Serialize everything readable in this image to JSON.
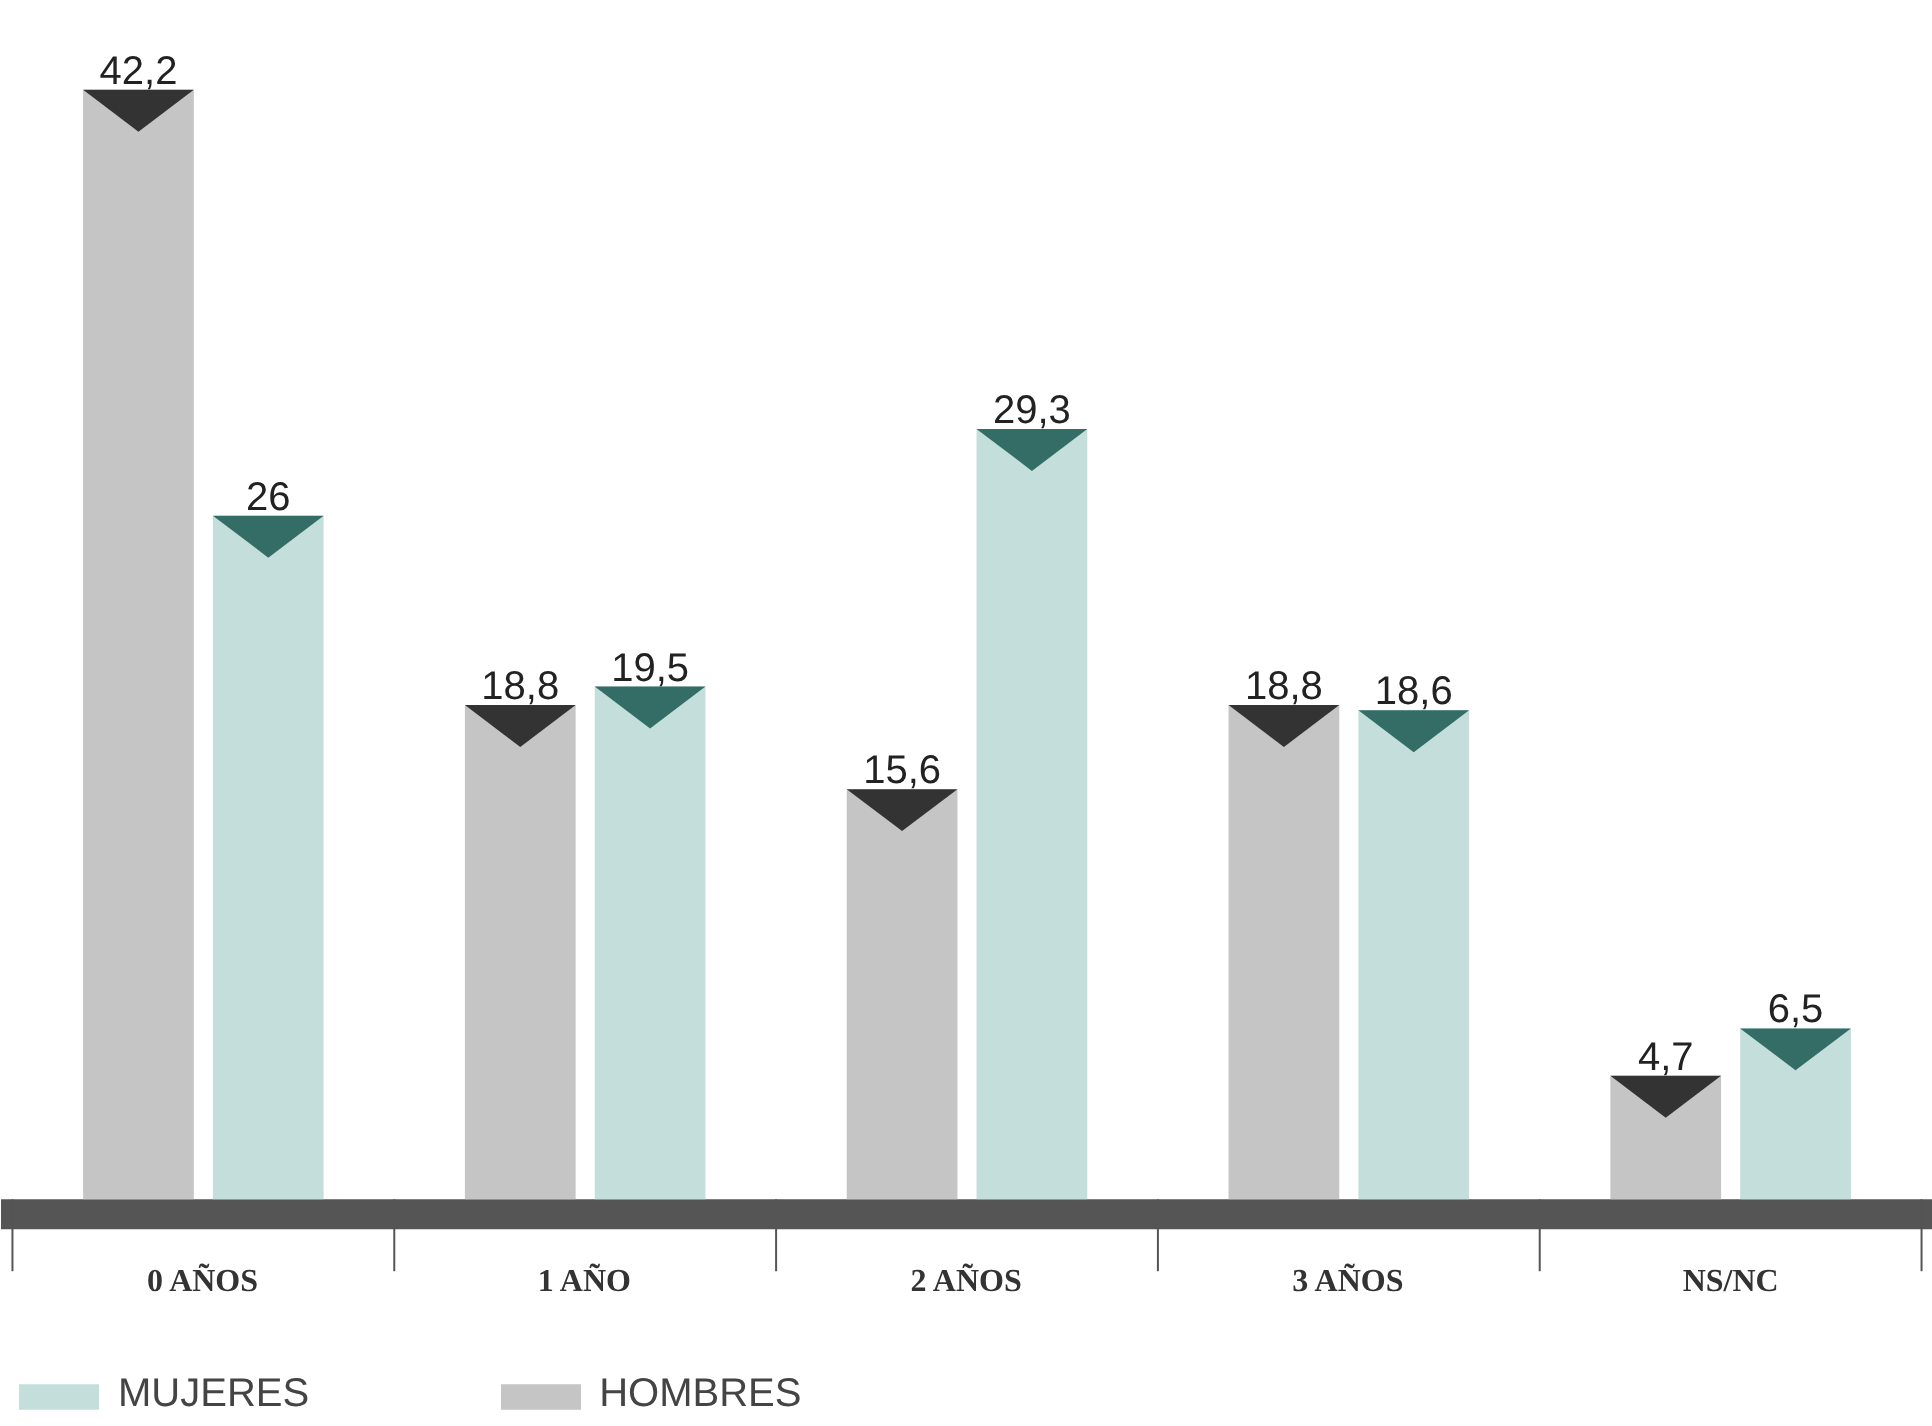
{
  "chart_data": {
    "type": "bar",
    "categories": [
      "0 AÑOS",
      "1 AÑO",
      "2 AÑOS",
      "3 AÑOS",
      "NS/NC"
    ],
    "series": [
      {
        "name": "HOMBRES",
        "color": "#c5c5c6",
        "values": [
          42.2,
          18.8,
          15.6,
          18.8,
          4.7
        ],
        "value_labels": [
          "42,2",
          "18,8",
          "15,6",
          "18,8",
          "4,7"
        ]
      },
      {
        "name": "MUJERES",
        "color": "#c3dedb",
        "values": [
          26,
          19.5,
          29.3,
          18.6,
          6.5
        ],
        "value_labels": [
          "26",
          "19,5",
          "29,3",
          "18,6",
          "6,5"
        ]
      }
    ],
    "tick_labels": "x",
    "grid": false,
    "legend": "bottom left"
  }
}
